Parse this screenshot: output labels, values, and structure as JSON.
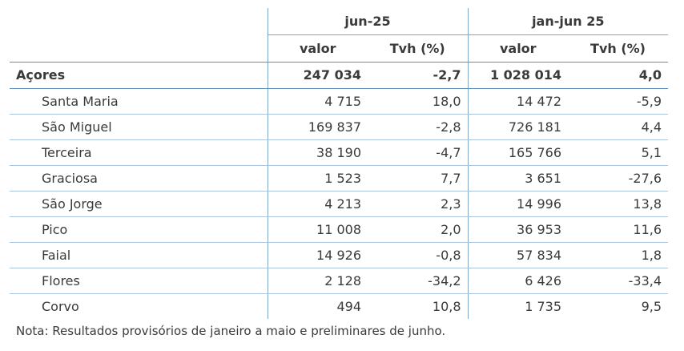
{
  "header": {
    "group1": "jun-25",
    "group2": "jan-jun 25",
    "col_valor": "valor",
    "col_tvh": "Tvh (%)"
  },
  "total": {
    "name": "Açores",
    "v1": "247 034",
    "t1": "-2,7",
    "v2": "1 028 014",
    "t2": "4,0"
  },
  "rows": [
    {
      "name": "Santa Maria",
      "v1": "4 715",
      "t1": "18,0",
      "v2": "14 472",
      "t2": "-5,9"
    },
    {
      "name": "São Miguel",
      "v1": "169 837",
      "t1": "-2,8",
      "v2": "726 181",
      "t2": "4,4"
    },
    {
      "name": "Terceira",
      "v1": "38 190",
      "t1": "-4,7",
      "v2": "165 766",
      "t2": "5,1"
    },
    {
      "name": "Graciosa",
      "v1": "1 523",
      "t1": "7,7",
      "v2": "3 651",
      "t2": "-27,6"
    },
    {
      "name": "São Jorge",
      "v1": "4 213",
      "t1": "2,3",
      "v2": "14 996",
      "t2": "13,8"
    },
    {
      "name": "Pico",
      "v1": "11 008",
      "t1": "2,0",
      "v2": "36 953",
      "t2": "11,6"
    },
    {
      "name": "Faial",
      "v1": "14 926",
      "t1": "-0,8",
      "v2": "57 834",
      "t2": "1,8"
    },
    {
      "name": "Flores",
      "v1": "2 128",
      "t1": "-34,2",
      "v2": "6 426",
      "t2": "-33,4"
    },
    {
      "name": "Corvo",
      "v1": "494",
      "t1": "10,8",
      "v2": "1 735",
      "t2": "9,5"
    }
  ],
  "note": "Nota: Resultados provisórios de janeiro a maio e preliminares de junho.",
  "colors": {
    "rule": "#5f8fba",
    "row_rule": "#a9c4dc",
    "text": "#3a3a3a"
  }
}
